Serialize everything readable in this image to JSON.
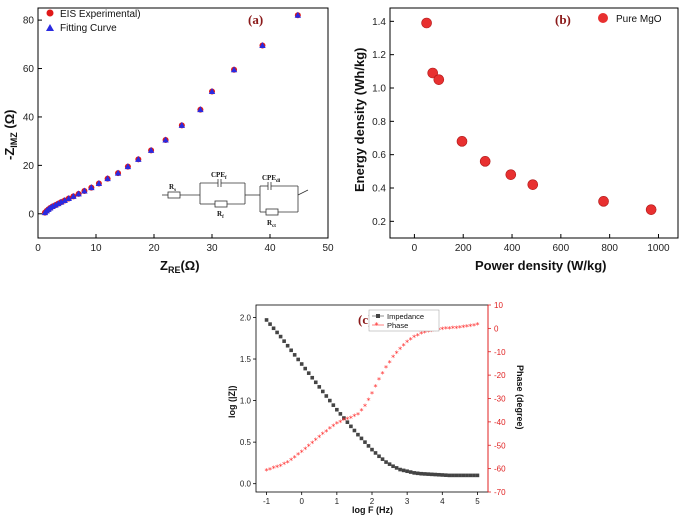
{
  "chart_data": [
    {
      "type": "scatter",
      "panel_label": "(a)",
      "xlabel": "Z",
      "xlabel_sub": "RE",
      "xlabel_unit": "(Ω)",
      "ylabel": "-Z",
      "ylabel_sub": "IMZ",
      "ylabel_unit": " (Ω)",
      "xlim": [
        0,
        50
      ],
      "ylim": [
        -10,
        85
      ],
      "xticks": [
        "0",
        "10",
        "20",
        "30",
        "40",
        "50"
      ],
      "xtick_values": [
        0,
        10,
        20,
        30,
        40,
        50
      ],
      "yticks": [
        "0",
        "20",
        "40",
        "60",
        "80"
      ],
      "ytick_values": [
        0,
        20,
        40,
        60,
        80
      ],
      "series": [
        {
          "name": "EIS Experimental)",
          "color": "#e01818",
          "marker": "circle",
          "x": [
            1.2,
            1.5,
            1.8,
            2.1,
            2.5,
            3.0,
            3.5,
            4.0,
            4.6,
            5.3,
            6.1,
            7.0,
            8.0,
            9.2,
            10.5,
            12.0,
            13.8,
            15.5,
            17.3,
            19.5,
            22.0,
            24.8,
            28.0,
            30.0,
            33.8,
            38.7,
            44.8
          ],
          "y": [
            0.5,
            1.2,
            1.8,
            2.4,
            3.0,
            3.6,
            4.2,
            4.8,
            5.5,
            6.3,
            7.2,
            8.2,
            9.4,
            10.8,
            12.5,
            14.5,
            16.8,
            19.5,
            22.5,
            26.2,
            30.5,
            36.5,
            43.0,
            50.5,
            59.5,
            69.5,
            82.0
          ]
        },
        {
          "name": "Fitting Curve",
          "color": "#2a2ae0",
          "marker": "triangle",
          "x": [
            1.2,
            1.5,
            1.8,
            2.1,
            2.5,
            3.0,
            3.5,
            4.0,
            4.6,
            5.3,
            6.1,
            7.0,
            8.0,
            9.2,
            10.5,
            12.0,
            13.8,
            15.5,
            17.3,
            19.5,
            22.0,
            24.8,
            28.0,
            30.0,
            33.8,
            38.7,
            44.8
          ],
          "y": [
            0.5,
            1.2,
            1.8,
            2.4,
            3.0,
            3.6,
            4.2,
            4.8,
            5.5,
            6.3,
            7.2,
            8.2,
            9.4,
            10.8,
            12.5,
            14.5,
            16.8,
            19.5,
            22.5,
            26.2,
            30.5,
            36.5,
            43.0,
            50.5,
            59.5,
            69.5,
            82.0
          ]
        }
      ],
      "legend_position": "top-left",
      "circuit": {
        "labels": [
          "R",
          "s",
          "CPE",
          "f",
          "CPE",
          "dl",
          "R",
          "f",
          "R",
          "ct"
        ]
      }
    },
    {
      "type": "scatter",
      "panel_label": "(b)",
      "xlabel": "Power density (W/kg)",
      "ylabel": "Energy density (Wh/kg)",
      "xlim": [
        -100,
        1080
      ],
      "ylim": [
        0.1,
        1.48
      ],
      "xticks": [
        "0",
        "200",
        "400",
        "600",
        "800",
        "1000"
      ],
      "xtick_values": [
        0,
        200,
        400,
        600,
        800,
        1000
      ],
      "yticks": [
        "0.2",
        "0.4",
        "0.6",
        "0.8",
        "1.0",
        "1.2",
        "1.4"
      ],
      "ytick_values": [
        0.2,
        0.4,
        0.6,
        0.8,
        1.0,
        1.2,
        1.4
      ],
      "series": [
        {
          "name": "Pure MgO",
          "color": "#e83030",
          "marker": "circle",
          "x": [
            50,
            75,
            100,
            195,
            290,
            395,
            485,
            775,
            970
          ],
          "y": [
            1.39,
            1.09,
            1.05,
            0.68,
            0.56,
            0.48,
            0.42,
            0.32,
            0.27
          ]
        }
      ],
      "legend_position": "top-right"
    },
    {
      "type": "line",
      "panel_label": "(c)",
      "xlabel": "log F (Hz)",
      "ylabel": "log (|Z|)",
      "ylabel_right": "Phase (degree)",
      "xlim": [
        -1.3,
        5.3
      ],
      "ylim": [
        -0.1,
        2.15
      ],
      "ylim_right": [
        -70,
        10
      ],
      "xticks": [
        "-1",
        "0",
        "1",
        "2",
        "3",
        "4",
        "5"
      ],
      "xtick_values": [
        -1,
        0,
        1,
        2,
        3,
        4,
        5
      ],
      "yticks": [
        "0.0",
        "0.5",
        "1.0",
        "1.5",
        "2.0"
      ],
      "ytick_values": [
        0.0,
        0.5,
        1.0,
        1.5,
        2.0
      ],
      "yticks_right": [
        "10",
        "0",
        "-10",
        "-20",
        "-30",
        "-40",
        "-50",
        "-60",
        "-70"
      ],
      "ytick_values_right": [
        10,
        0,
        -10,
        -20,
        -30,
        -40,
        -50,
        -60,
        -70
      ],
      "series": [
        {
          "name": "Impedance",
          "color": "#444444",
          "marker": "square",
          "axis": "left",
          "x": [
            -1.0,
            -0.8,
            -0.6,
            -0.4,
            -0.2,
            0.0,
            0.2,
            0.4,
            0.6,
            0.8,
            1.0,
            1.2,
            1.4,
            1.6,
            1.8,
            2.0,
            2.2,
            2.4,
            2.6,
            2.8,
            3.0,
            3.2,
            3.4,
            3.6,
            3.8,
            4.0,
            4.2,
            4.4,
            4.6,
            4.8,
            5.0
          ],
          "y": [
            1.97,
            1.87,
            1.77,
            1.66,
            1.55,
            1.44,
            1.33,
            1.22,
            1.11,
            1.0,
            0.89,
            0.79,
            0.69,
            0.59,
            0.5,
            0.41,
            0.33,
            0.26,
            0.21,
            0.17,
            0.15,
            0.13,
            0.12,
            0.115,
            0.11,
            0.105,
            0.1,
            0.1,
            0.1,
            0.1,
            0.1
          ]
        },
        {
          "name": "Phase",
          "color": "#ff2a2a",
          "marker": "star",
          "axis": "right",
          "x": [
            -1.0,
            -0.8,
            -0.6,
            -0.4,
            -0.2,
            0.0,
            0.2,
            0.4,
            0.6,
            0.8,
            1.0,
            1.2,
            1.4,
            1.6,
            1.8,
            2.0,
            2.2,
            2.4,
            2.6,
            2.8,
            3.0,
            3.2,
            3.4,
            3.6,
            3.8,
            4.0,
            4.2,
            4.4,
            4.6,
            4.8,
            5.0
          ],
          "y": [
            -61,
            -60,
            -59,
            -57.5,
            -55.5,
            -53,
            -50.5,
            -48,
            -45.5,
            -43,
            -41,
            -39.5,
            -38.5,
            -37,
            -33.5,
            -28,
            -22,
            -17,
            -12.5,
            -9,
            -6,
            -4,
            -2.5,
            -1.5,
            -1,
            -0.5,
            -0.2,
            0,
            0.3,
            0.7,
            1.5
          ]
        }
      ],
      "legend_position": "top-left"
    }
  ]
}
